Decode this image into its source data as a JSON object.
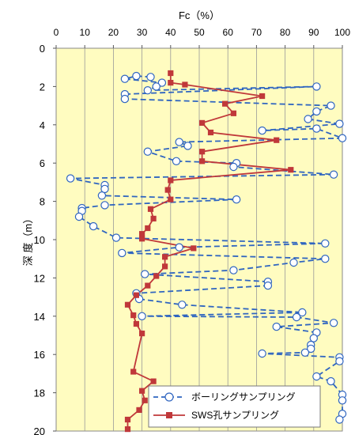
{
  "chart_data": {
    "type": "line",
    "title": "",
    "xlabel": "Fc（%）",
    "ylabel": "深 度（m）",
    "xlim": [
      0,
      100
    ],
    "ylim": [
      0,
      20
    ],
    "y_inverted": true,
    "x_axis_position": "top",
    "xticks": [
      "0",
      "10",
      "20",
      "30",
      "40",
      "50",
      "60",
      "70",
      "80",
      "90",
      "100"
    ],
    "yticks": [
      "0",
      "2",
      "4",
      "6",
      "8",
      "10",
      "12",
      "14",
      "16",
      "18",
      "20"
    ],
    "grid": "vertical",
    "plot_bg": "#fffcc0",
    "legend_position": "bottom-right",
    "series": [
      {
        "name": "ボーリングサンプリング",
        "color": "#2f65c0",
        "style": "dashed line with open circle markers",
        "points": [
          [
            33,
            1.5
          ],
          [
            28,
            1.45
          ],
          [
            24,
            1.6
          ],
          [
            37,
            1.8
          ],
          [
            35,
            2.0
          ],
          [
            32,
            2.2
          ],
          [
            91,
            2.0
          ],
          [
            24,
            2.4
          ],
          [
            24,
            2.65
          ],
          [
            96,
            3.0
          ],
          [
            91,
            3.3
          ],
          [
            88,
            3.7
          ],
          [
            99,
            3.95
          ],
          [
            72,
            4.3
          ],
          [
            91,
            4.2
          ],
          [
            100,
            4.7
          ],
          [
            43,
            4.9
          ],
          [
            46,
            5.1
          ],
          [
            32,
            5.4
          ],
          [
            42,
            5.9
          ],
          [
            63,
            6.0
          ],
          [
            62,
            6.2
          ],
          [
            97,
            6.6
          ],
          [
            5,
            6.8
          ],
          [
            17,
            7.15
          ],
          [
            17,
            7.35
          ],
          [
            16,
            7.7
          ],
          [
            63,
            7.9
          ],
          [
            17,
            8.2
          ],
          [
            9,
            8.35
          ],
          [
            9,
            8.5
          ],
          [
            8,
            8.8
          ],
          [
            13,
            9.3
          ],
          [
            21,
            9.9
          ],
          [
            94,
            10.2
          ],
          [
            43,
            10.4
          ],
          [
            23,
            10.7
          ],
          [
            94,
            11.0
          ],
          [
            83,
            11.2
          ],
          [
            62,
            11.6
          ],
          [
            31,
            11.8
          ],
          [
            74,
            12.2
          ],
          [
            74,
            12.4
          ],
          [
            28,
            12.8
          ],
          [
            29,
            13.1
          ],
          [
            44,
            13.4
          ],
          [
            86,
            13.8
          ],
          [
            30,
            14.0
          ],
          [
            84,
            14.05
          ],
          [
            97,
            14.35
          ],
          [
            77,
            14.55
          ],
          [
            91,
            14.85
          ],
          [
            90,
            15.15
          ],
          [
            89,
            15.5
          ],
          [
            89,
            15.7
          ],
          [
            87,
            15.9
          ],
          [
            72,
            15.95
          ],
          [
            99,
            16.15
          ],
          [
            99,
            16.35
          ],
          [
            91,
            17.15
          ],
          [
            96,
            17.4
          ],
          [
            100,
            18.1
          ],
          [
            100,
            18.4
          ],
          [
            100,
            19.1
          ],
          [
            99,
            19.4
          ]
        ]
      },
      {
        "name": "SWS孔サンプリング",
        "color": "#c0383a",
        "style": "solid line with filled square markers",
        "points": [
          [
            40,
            1.3
          ],
          [
            40,
            1.8
          ],
          [
            45,
            1.9
          ],
          [
            72,
            2.5
          ],
          [
            59,
            2.9
          ],
          [
            62,
            3.4
          ],
          [
            51,
            3.9
          ],
          [
            54,
            4.4
          ],
          [
            77,
            4.8
          ],
          [
            51,
            5.4
          ],
          [
            51,
            5.9
          ],
          [
            82,
            6.35
          ],
          [
            40,
            6.9
          ],
          [
            39,
            7.4
          ],
          [
            40,
            7.9
          ],
          [
            33,
            8.4
          ],
          [
            34,
            8.9
          ],
          [
            32,
            9.4
          ],
          [
            30,
            9.7
          ],
          [
            30,
            9.95
          ],
          [
            48,
            10.45
          ],
          [
            38,
            10.9
          ],
          [
            38,
            11.4
          ],
          [
            35,
            11.9
          ],
          [
            32,
            12.4
          ],
          [
            28,
            12.9
          ],
          [
            25,
            13.4
          ],
          [
            27,
            13.95
          ],
          [
            28,
            14.4
          ],
          [
            30,
            14.9
          ],
          [
            27,
            16.9
          ],
          [
            34,
            17.4
          ],
          [
            30,
            17.9
          ],
          [
            31,
            18.4
          ],
          [
            29,
            18.9
          ],
          [
            25,
            19.4
          ],
          [
            25,
            19.9
          ]
        ]
      }
    ]
  }
}
